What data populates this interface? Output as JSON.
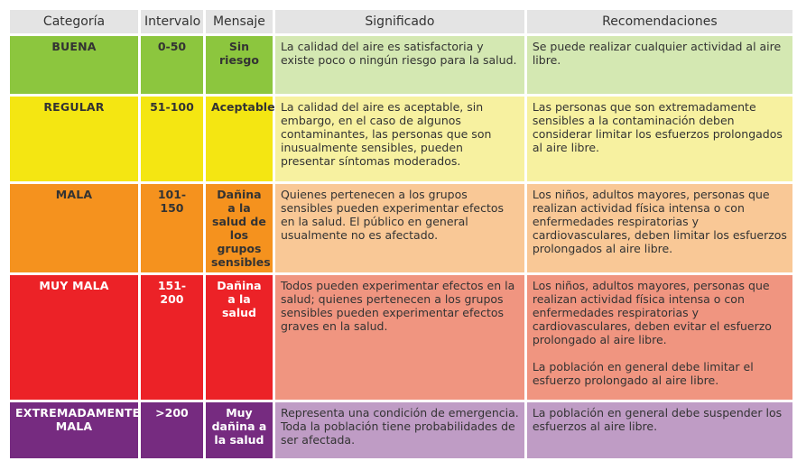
{
  "colors": {
    "buena_dark": "#8cc63e",
    "buena_light": "#d4e8b2",
    "regular_dark": "#f4e612",
    "regular_light": "#f7f1a0",
    "mala_dark": "#f5921e",
    "mala_light": "#f9c896",
    "muy_mala_dark": "#ec2227",
    "muy_mala_light": "#f09580",
    "extrema_dark": "#762b80",
    "extrema_light": "#bf9cc5",
    "header_bg": "#e4e4e4"
  },
  "headers": [
    "Categoría",
    "Intervalo",
    "Mensaje",
    "Significado",
    "Recomendaciones"
  ],
  "rows": [
    {
      "category": "BUENA",
      "range": "0-50",
      "message": "Sin riesgo",
      "meaning": "La calidad del aire es satisfactoria y existe poco o ningún riesgo para la salud.",
      "recommendations": [
        "Se puede realizar cualquier actividad al aire libre."
      ]
    },
    {
      "category": "REGULAR",
      "range": "51-100",
      "message": "Aceptable",
      "meaning": "La calidad del aire es aceptable, sin embargo, en el caso de algunos contaminantes, las personas que son inusualmente sensibles, pueden presentar síntomas moderados.",
      "recommendations": [
        "Las personas que son extremadamente sensibles a la contaminación deben considerar limitar los esfuerzos prolongados al aire libre."
      ]
    },
    {
      "category": "MALA",
      "range": "101-150",
      "message": "Dañina a la salud de los grupos sensibles",
      "meaning": "Quienes pertenecen a los grupos sensibles pueden experimentar efectos en la salud. El público en general usualmente no es afectado.",
      "recommendations": [
        "Los niños, adultos mayores, personas que realizan actividad física intensa o con enfermedades respiratorias y cardiovasculares, deben limitar los esfuerzos prolongados al aire libre."
      ]
    },
    {
      "category": "MUY MALA",
      "range": "151-200",
      "message": "Dañina a la salud",
      "meaning": "Todos pueden experimentar efectos en la salud; quienes pertenecen a los grupos sensibles pueden experimentar efectos graves en la salud.",
      "recommendations": [
        "Los niños, adultos mayores, personas que realizan actividad física intensa o con enfermedades respiratorias y cardiovasculares, deben evitar el esfuerzo prolongado al aire libre.",
        "La población en general debe limitar el esfuerzo prolongado al aire libre."
      ]
    },
    {
      "category": "EXTREMADAMENTE MALA",
      "range": ">200",
      "message": "Muy dañina a la salud",
      "meaning": "Representa una condición de emergencia. Toda la población tiene probabilidades de ser afectada.",
      "recommendations": [
        "La población en general debe suspender los esfuerzos al aire libre."
      ]
    }
  ]
}
